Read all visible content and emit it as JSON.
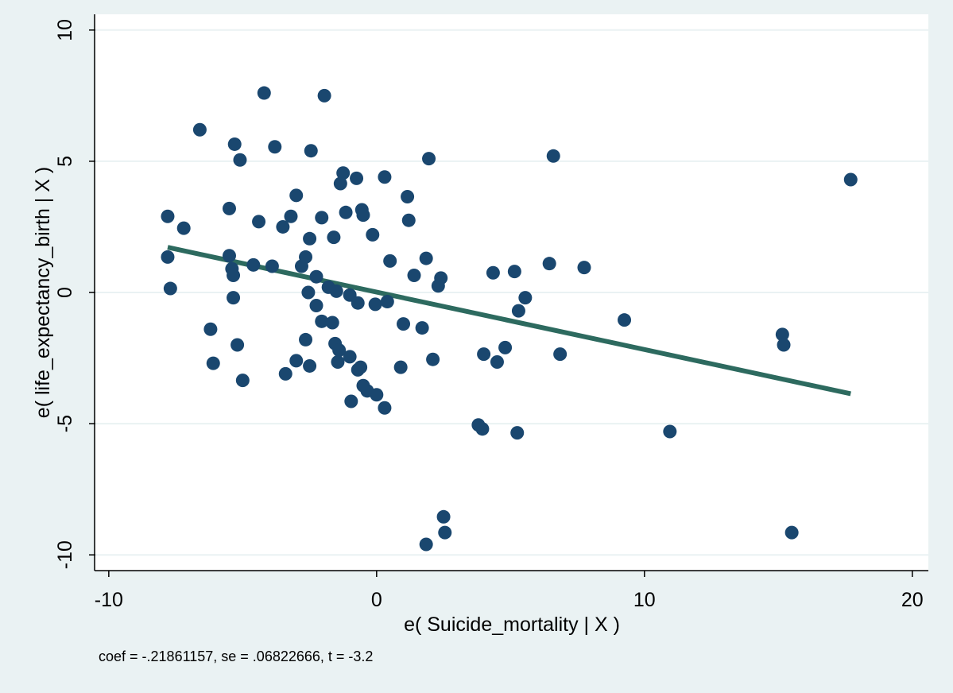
{
  "colors": {
    "outer_background": "#eaf2f3",
    "plot_background": "#ffffff",
    "grid": "#eaf2f3",
    "marker": "#1a476f",
    "fit_line": "#2d6a5f"
  },
  "chart_data": {
    "type": "scatter",
    "title": "",
    "xlabel": "e( Suicide_mortality | X )",
    "ylabel": "e( life_expectancy_birth | X )",
    "xlim": [
      -10.5,
      20.6
    ],
    "ylim": [
      -10.6,
      10.6
    ],
    "xticks": [
      -10,
      0,
      10,
      20
    ],
    "yticks": [
      -10,
      -5,
      0,
      5,
      10
    ],
    "xtick_labels": [
      "-10",
      "0",
      "10",
      "20"
    ],
    "ytick_labels": [
      "-10",
      "-5",
      "0",
      "5",
      "10"
    ],
    "grid": "horizontal",
    "note": "coef = -.21861157, se = .06822666, t = -3.2",
    "fit_line": {
      "coef": -0.21861157,
      "x": [
        -7.8,
        17.7
      ],
      "y": [
        1.72,
        -3.86
      ]
    },
    "points": [
      [
        -7.8,
        2.9
      ],
      [
        -7.8,
        1.35
      ],
      [
        -7.7,
        0.15
      ],
      [
        -7.2,
        2.45
      ],
      [
        -6.6,
        6.2
      ],
      [
        -6.2,
        -1.4
      ],
      [
        -6.1,
        -2.7
      ],
      [
        -5.5,
        3.2
      ],
      [
        -5.5,
        1.4
      ],
      [
        -5.4,
        0.9
      ],
      [
        -5.35,
        0.65
      ],
      [
        -5.35,
        -0.2
      ],
      [
        -5.3,
        5.65
      ],
      [
        -5.2,
        -2.0
      ],
      [
        -5.1,
        5.05
      ],
      [
        -5.0,
        -3.35
      ],
      [
        -4.6,
        1.05
      ],
      [
        -4.4,
        2.7
      ],
      [
        -4.2,
        7.6
      ],
      [
        -3.9,
        1.0
      ],
      [
        -3.8,
        5.55
      ],
      [
        -3.5,
        2.5
      ],
      [
        -3.4,
        -3.1
      ],
      [
        -3.2,
        2.9
      ],
      [
        -3.0,
        3.7
      ],
      [
        -3.0,
        -2.6
      ],
      [
        -2.8,
        1.0
      ],
      [
        -2.65,
        1.35
      ],
      [
        -2.65,
        -1.8
      ],
      [
        -2.55,
        0.0
      ],
      [
        -2.5,
        -2.8
      ],
      [
        -2.5,
        2.05
      ],
      [
        -2.45,
        5.4
      ],
      [
        -2.25,
        0.6
      ],
      [
        -2.25,
        -0.5
      ],
      [
        -2.05,
        2.85
      ],
      [
        -2.05,
        -1.1
      ],
      [
        -1.95,
        7.5
      ],
      [
        -1.8,
        0.2
      ],
      [
        -1.65,
        -1.15
      ],
      [
        -1.6,
        2.1
      ],
      [
        -1.55,
        -1.95
      ],
      [
        -1.5,
        0.05
      ],
      [
        -1.45,
        -2.65
      ],
      [
        -1.4,
        -2.2
      ],
      [
        -1.35,
        4.15
      ],
      [
        -1.25,
        4.55
      ],
      [
        -1.15,
        3.05
      ],
      [
        -1.0,
        -0.1
      ],
      [
        -1.0,
        -2.45
      ],
      [
        -0.95,
        -4.15
      ],
      [
        -0.75,
        4.35
      ],
      [
        -0.7,
        -0.4
      ],
      [
        -0.7,
        -2.95
      ],
      [
        -0.6,
        -2.85
      ],
      [
        -0.55,
        3.15
      ],
      [
        -0.5,
        2.95
      ],
      [
        -0.5,
        -3.55
      ],
      [
        -0.35,
        -3.75
      ],
      [
        -0.15,
        2.2
      ],
      [
        -0.05,
        -0.45
      ],
      [
        0.0,
        -3.9
      ],
      [
        0.3,
        4.4
      ],
      [
        0.3,
        -4.4
      ],
      [
        0.4,
        -0.35
      ],
      [
        0.5,
        1.2
      ],
      [
        0.9,
        -2.85
      ],
      [
        1.0,
        -1.2
      ],
      [
        1.15,
        3.65
      ],
      [
        1.2,
        2.75
      ],
      [
        1.4,
        0.65
      ],
      [
        1.7,
        -1.35
      ],
      [
        1.85,
        1.3
      ],
      [
        1.85,
        -9.6
      ],
      [
        1.95,
        5.1
      ],
      [
        2.1,
        -2.55
      ],
      [
        2.3,
        0.25
      ],
      [
        2.4,
        0.55
      ],
      [
        2.5,
        -8.55
      ],
      [
        2.55,
        -9.15
      ],
      [
        3.8,
        -5.05
      ],
      [
        3.95,
        -5.2
      ],
      [
        4.0,
        -2.35
      ],
      [
        4.35,
        0.75
      ],
      [
        4.5,
        -2.65
      ],
      [
        4.8,
        -2.1
      ],
      [
        5.15,
        0.8
      ],
      [
        5.25,
        -5.35
      ],
      [
        5.3,
        -0.7
      ],
      [
        5.55,
        -0.2
      ],
      [
        6.45,
        1.1
      ],
      [
        6.6,
        5.2
      ],
      [
        6.85,
        -2.35
      ],
      [
        7.75,
        0.95
      ],
      [
        9.25,
        -1.05
      ],
      [
        10.95,
        -5.3
      ],
      [
        15.15,
        -1.6
      ],
      [
        15.2,
        -2.0
      ],
      [
        15.5,
        -9.15
      ],
      [
        17.7,
        4.3
      ]
    ]
  }
}
